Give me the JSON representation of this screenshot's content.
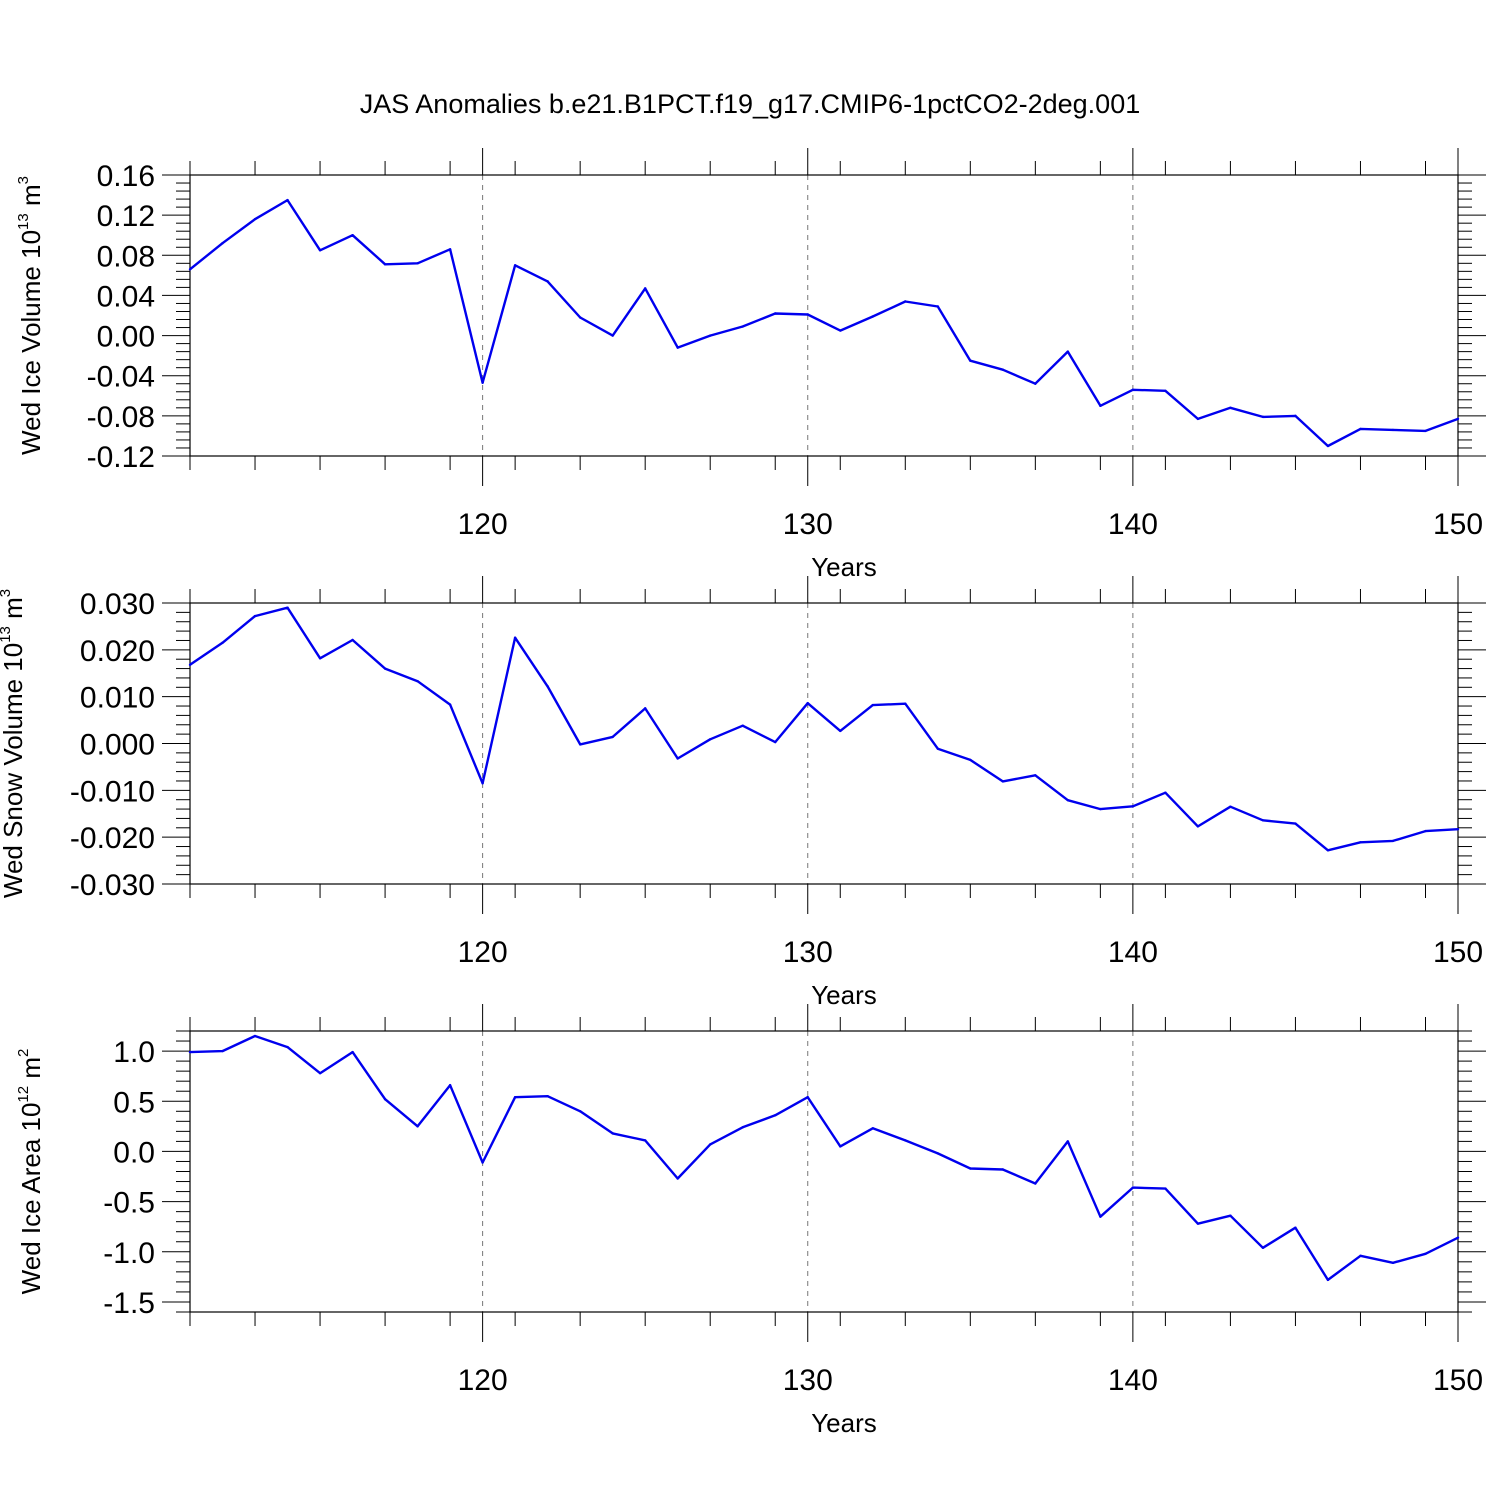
{
  "figure": {
    "title": "JAS Anomalies b.e21.B1PCT.f19_g17.CMIP6-1pctCO2-2deg.001"
  },
  "chart_data": [
    {
      "type": "line",
      "title": "",
      "xlabel": "Years",
      "ylabel": "Wed Ice Volume 10",
      "ylabel_exp": "13",
      "ylabel_unit": " m",
      "ylabel_unit_exp": "3",
      "xlim": [
        111,
        150
      ],
      "ylim": [
        -0.12,
        0.16
      ],
      "xticks": [
        120,
        130,
        140,
        150
      ],
      "xtick_labels": [
        "120",
        "130",
        "140",
        "150"
      ],
      "yticks": [
        0.16,
        0.12,
        0.08,
        0.04,
        0.0,
        -0.04,
        -0.08,
        -0.12
      ],
      "ytick_labels": [
        "0.16",
        "0.12",
        "0.08",
        "0.04",
        "0.00",
        "-0.04",
        "-0.08",
        "-0.12"
      ],
      "grid": "vertical dashed at major x ticks",
      "color": "#0000ee",
      "x": [
        111,
        112,
        113,
        114,
        115,
        116,
        117,
        118,
        119,
        120,
        121,
        122,
        123,
        124,
        125,
        126,
        127,
        128,
        129,
        130,
        131,
        132,
        133,
        134,
        135,
        136,
        137,
        138,
        139,
        140,
        141,
        142,
        143,
        144,
        145,
        146,
        147,
        148,
        149,
        150
      ],
      "series": [
        {
          "values": [
            0.066,
            0.092,
            0.116,
            0.135,
            0.085,
            0.1,
            0.071,
            0.072,
            0.086,
            -0.047,
            0.07,
            0.054,
            0.018,
            0.0,
            0.047,
            -0.012,
            0.0,
            0.009,
            0.022,
            0.021,
            0.005,
            0.019,
            0.034,
            0.029,
            -0.025,
            -0.034,
            -0.048,
            -0.016,
            -0.07,
            -0.054,
            -0.055,
            -0.083,
            -0.072,
            -0.081,
            -0.08,
            -0.11,
            -0.093,
            -0.094,
            -0.095,
            -0.083
          ]
        }
      ]
    },
    {
      "type": "line",
      "title": "",
      "xlabel": "Years",
      "ylabel": "Wed Snow Volume 10",
      "ylabel_exp": "13",
      "ylabel_unit": " m",
      "ylabel_unit_exp": "3",
      "xlim": [
        111,
        150
      ],
      "ylim": [
        -0.03,
        0.03
      ],
      "xticks": [
        120,
        130,
        140,
        150
      ],
      "xtick_labels": [
        "120",
        "130",
        "140",
        "150"
      ],
      "yticks": [
        0.03,
        0.02,
        0.01,
        0.0,
        -0.01,
        -0.02,
        -0.03
      ],
      "ytick_labels": [
        "0.030",
        "0.020",
        "0.010",
        "0.000",
        "-0.010",
        "-0.020",
        "-0.030"
      ],
      "grid": "vertical dashed at major x ticks",
      "color": "#0000ee",
      "x": [
        111,
        112,
        113,
        114,
        115,
        116,
        117,
        118,
        119,
        120,
        121,
        122,
        123,
        124,
        125,
        126,
        127,
        128,
        129,
        130,
        131,
        132,
        133,
        134,
        135,
        136,
        137,
        138,
        139,
        140,
        141,
        142,
        143,
        144,
        145,
        146,
        147,
        148,
        149,
        150
      ],
      "series": [
        {
          "values": [
            0.0168,
            0.0215,
            0.0272,
            0.029,
            0.0182,
            0.0221,
            0.016,
            0.0133,
            0.0083,
            -0.0085,
            0.0226,
            0.0122,
            -0.0002,
            0.0014,
            0.0075,
            -0.0032,
            0.0009,
            0.0038,
            0.0003,
            0.0086,
            0.0027,
            0.0082,
            0.0085,
            -0.0011,
            -0.0035,
            -0.0081,
            -0.0068,
            -0.0121,
            -0.014,
            -0.0134,
            -0.0105,
            -0.0177,
            -0.0135,
            -0.0164,
            -0.0171,
            -0.0228,
            -0.0211,
            -0.0208,
            -0.0187,
            -0.0183
          ]
        }
      ]
    },
    {
      "type": "line",
      "title": "",
      "xlabel": "Years",
      "ylabel": "Wed Ice Area 10",
      "ylabel_exp": "12",
      "ylabel_unit": " m",
      "ylabel_unit_exp": "2",
      "xlim": [
        111,
        150
      ],
      "ylim": [
        -1.6,
        1.2
      ],
      "xticks": [
        120,
        130,
        140,
        150
      ],
      "xtick_labels": [
        "120",
        "130",
        "140",
        "150"
      ],
      "yticks": [
        1.0,
        0.5,
        0.0,
        -0.5,
        -1.0,
        -1.5
      ],
      "ytick_labels": [
        "1.0",
        "0.5",
        "0.0",
        "-0.5",
        "-1.0",
        "-1.5"
      ],
      "grid": "vertical dashed at major x ticks",
      "color": "#0000ee",
      "x": [
        111,
        112,
        113,
        114,
        115,
        116,
        117,
        118,
        119,
        120,
        121,
        122,
        123,
        124,
        125,
        126,
        127,
        128,
        129,
        130,
        131,
        132,
        133,
        134,
        135,
        136,
        137,
        138,
        139,
        140,
        141,
        142,
        143,
        144,
        145,
        146,
        147,
        148,
        149,
        150
      ],
      "series": [
        {
          "values": [
            0.99,
            1.0,
            1.15,
            1.04,
            0.78,
            0.99,
            0.52,
            0.25,
            0.66,
            -0.11,
            0.54,
            0.55,
            0.4,
            0.18,
            0.11,
            -0.27,
            0.07,
            0.24,
            0.36,
            0.54,
            0.05,
            0.23,
            0.11,
            -0.02,
            -0.17,
            -0.18,
            -0.32,
            0.1,
            -0.65,
            -0.36,
            -0.37,
            -0.72,
            -0.64,
            -0.96,
            -0.76,
            -1.28,
            -1.04,
            -1.11,
            -1.02,
            -0.86
          ]
        }
      ]
    }
  ]
}
